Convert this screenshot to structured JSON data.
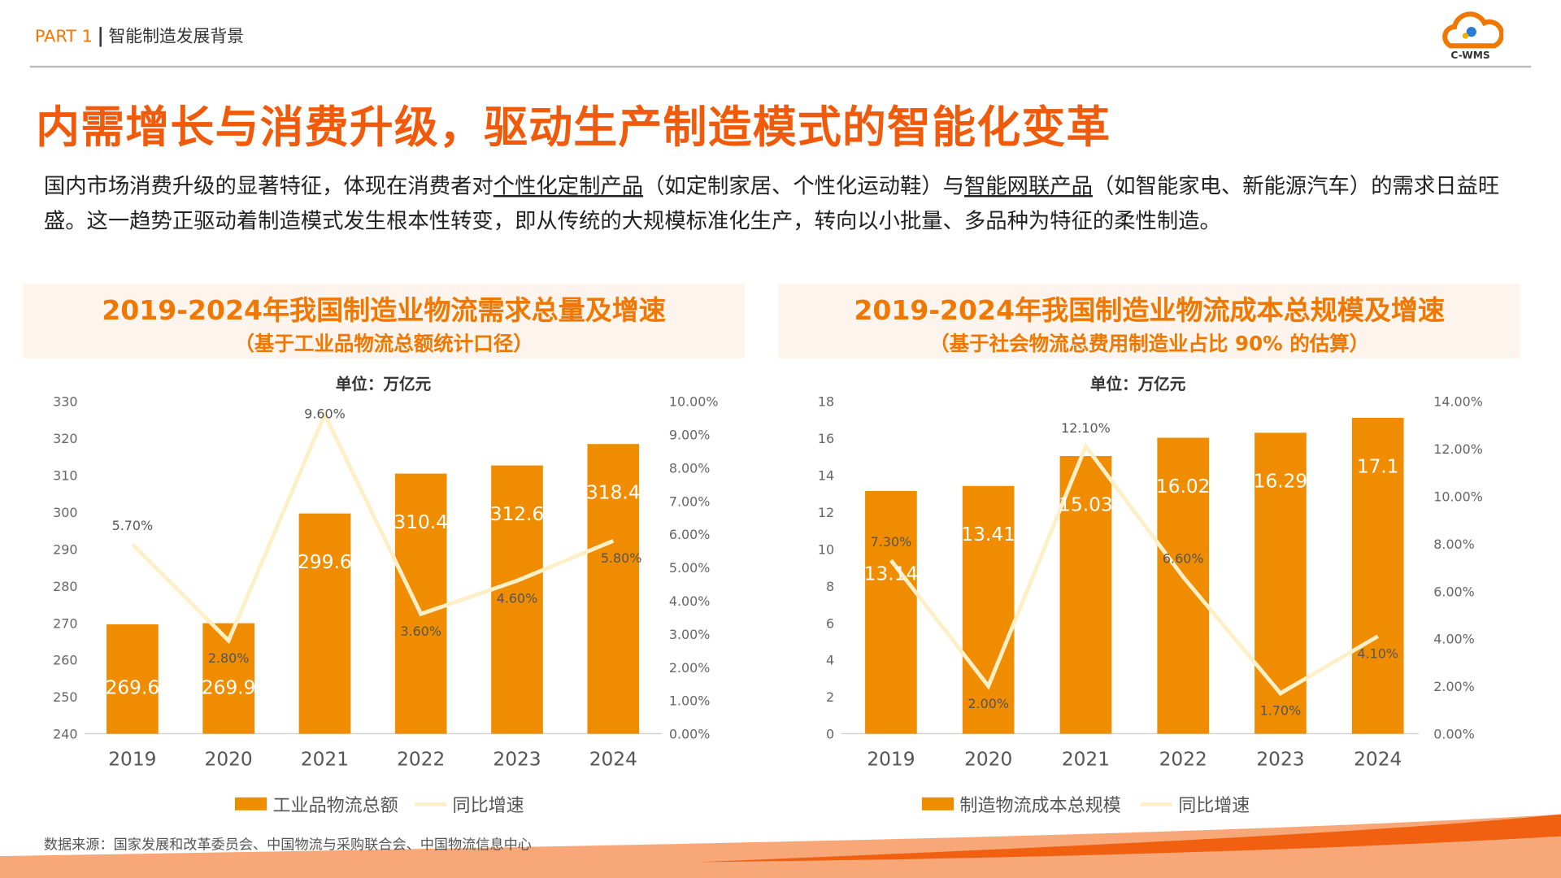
{
  "header": {
    "part": "PART 1",
    "section": "智能制造发展背景",
    "logo_text": "C-WMS"
  },
  "title": "内需增长与消费升级，驱动生产制造模式的智能化变革",
  "intro": {
    "p1": "国内市场消费升级的显著特征，体现在消费者对",
    "u1": "个性化定制产品",
    "p2": "（如定制家居、个性化运动鞋）与",
    "u2": "智能网联产品",
    "p3": "（如智能家电、新能源汽车）的需求日益旺盛。这一趋势正驱动着制造模式发生根本性转变，即从传统的大规模标准化生产，转向以小批量、多品种为特征的柔性制造。"
  },
  "colors": {
    "bar": "#f08c00",
    "line": "#fdf0c8",
    "title": "#f05a0a"
  },
  "chart_data": [
    {
      "type": "bar+line",
      "title": "2019-2024年我国制造业物流需求总量及增速",
      "subtitle": "（基于工业品物流总额统计口径）",
      "unit": "单位：万亿元",
      "categories": [
        "2019",
        "2020",
        "2021",
        "2022",
        "2023",
        "2024"
      ],
      "series": [
        {
          "name": "工业品物流总额",
          "type": "bar",
          "values": [
            269.6,
            269.9,
            299.6,
            310.4,
            312.6,
            318.4
          ],
          "labels": [
            "269.6",
            "269.9",
            "299.6",
            "310.4",
            "312.6",
            "318.4"
          ]
        },
        {
          "name": "同比增速",
          "type": "line",
          "axis": "right",
          "values": [
            5.7,
            2.8,
            9.6,
            3.6,
            4.6,
            5.8
          ],
          "labels": [
            "5.70%",
            "2.80%",
            "9.60%",
            "3.60%",
            "4.60%",
            "5.80%"
          ]
        }
      ],
      "ylim": [
        240,
        330
      ],
      "yticks": [
        "240",
        "250",
        "260",
        "270",
        "280",
        "290",
        "300",
        "310",
        "320",
        "330"
      ],
      "y2lim": [
        0,
        10
      ],
      "y2ticks": [
        "0.00%",
        "1.00%",
        "2.00%",
        "3.00%",
        "4.00%",
        "5.00%",
        "6.00%",
        "7.00%",
        "8.00%",
        "9.00%",
        "10.00%"
      ],
      "legend": "bottom"
    },
    {
      "type": "bar+line",
      "title": "2019-2024年我国制造业物流成本总规模及增速",
      "subtitle": "（基于社会物流总费用制造业占比 90% 的估算）",
      "unit": "单位：万亿元",
      "categories": [
        "2019",
        "2020",
        "2021",
        "2022",
        "2023",
        "2024"
      ],
      "series": [
        {
          "name": "制造物流成本总规模",
          "type": "bar",
          "values": [
            13.14,
            13.41,
            15.03,
            16.02,
            16.29,
            17.1
          ],
          "labels": [
            "13.14",
            "13.41",
            "15.03",
            "16.02",
            "16.29",
            "17.1"
          ]
        },
        {
          "name": "同比增速",
          "type": "line",
          "axis": "right",
          "values": [
            7.3,
            2.0,
            12.1,
            6.6,
            1.7,
            4.1
          ],
          "labels": [
            "7.30%",
            "2.00%",
            "12.10%",
            "6.60%",
            "1.70%",
            "4.10%"
          ]
        }
      ],
      "ylim": [
        0,
        18
      ],
      "yticks": [
        "0",
        "2",
        "4",
        "6",
        "8",
        "10",
        "12",
        "14",
        "16",
        "18"
      ],
      "y2lim": [
        0,
        14
      ],
      "y2ticks": [
        "0.00%",
        "2.00%",
        "4.00%",
        "6.00%",
        "8.00%",
        "10.00%",
        "12.00%",
        "14.00%"
      ],
      "legend": "bottom"
    }
  ],
  "source": "数据来源：国家发展和改革委员会、中国物流与采购联合会、中国物流信息中心"
}
